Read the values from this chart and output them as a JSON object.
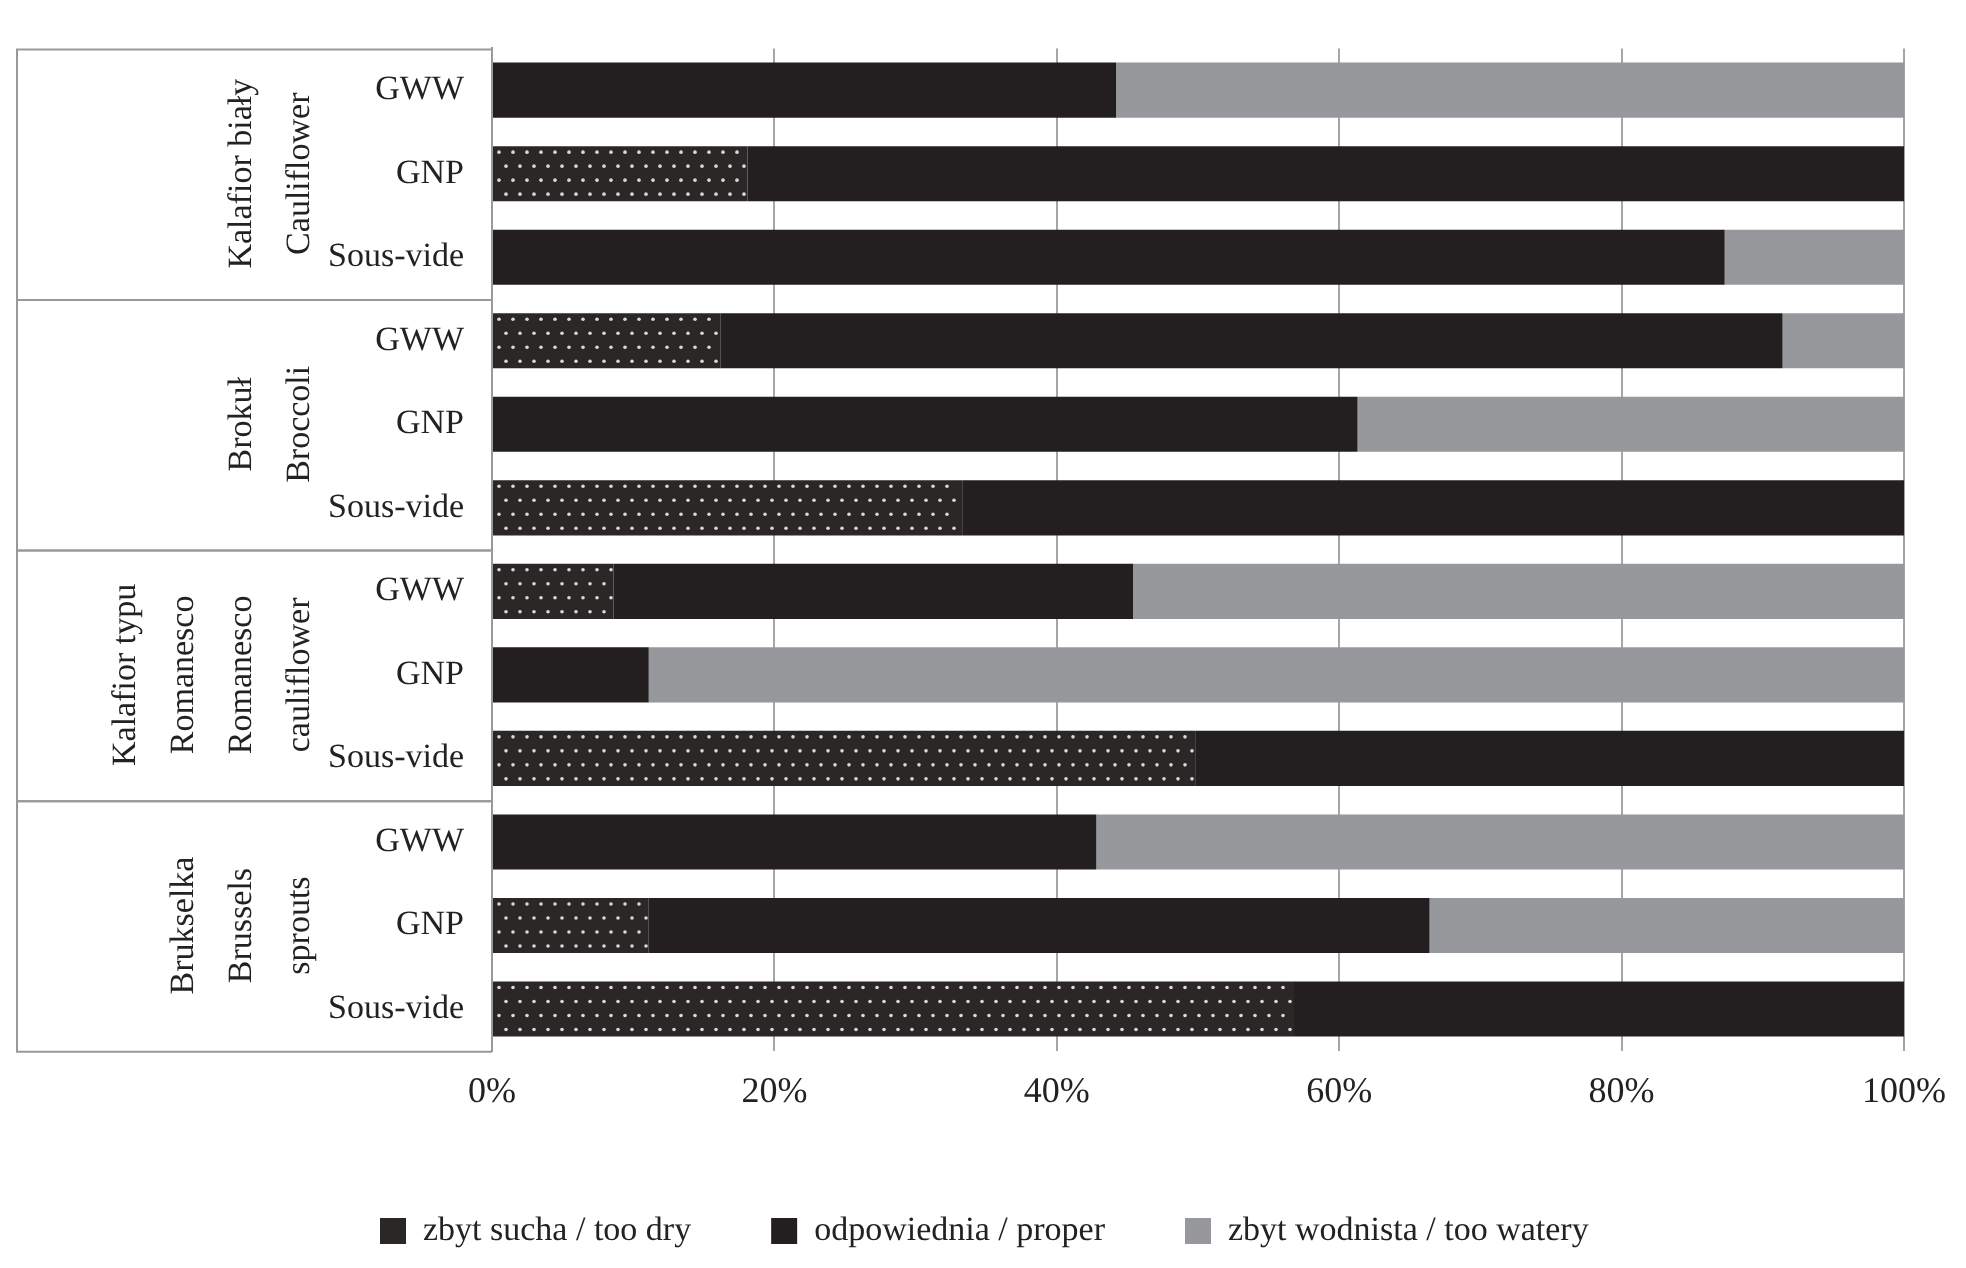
{
  "chart_data": {
    "type": "bar",
    "orientation": "horizontal",
    "stacked": true,
    "categories": [
      "GWW",
      "GNP",
      "Sous-vide",
      "GWW",
      "GNP",
      "Sous-vide",
      "GWW",
      "GNP",
      "Sous-vide",
      "GWW",
      "GNP",
      "Sous-vide"
    ],
    "series": [
      {
        "name": "zbyt sucha / too dry",
        "color": "#2b2727",
        "values": [
          0,
          18.1,
          0,
          16.2,
          0,
          33.3,
          8.6,
          0,
          49.8,
          0,
          11.1,
          56.8
        ]
      },
      {
        "name": "odpowiednia / proper",
        "color": "#231f20",
        "values": [
          44.2,
          81.9,
          87.3,
          75.2,
          61.3,
          66.7,
          36.8,
          11.1,
          50.2,
          42.8,
          55.3,
          43.2
        ]
      },
      {
        "name": "zbyt wodnista / too watery",
        "color": "#97989c",
        "values": [
          55.8,
          0,
          12.7,
          8.6,
          38.7,
          0,
          54.6,
          88.9,
          0,
          57.2,
          33.6,
          0
        ]
      }
    ],
    "xlim": [
      0,
      100
    ],
    "xticks": [
      {
        "value": 0,
        "label": "0%"
      },
      {
        "value": 20,
        "label": "20%"
      },
      {
        "value": 40,
        "label": "40%"
      },
      {
        "value": 60,
        "label": "60%"
      },
      {
        "value": 80,
        "label": "80%"
      },
      {
        "value": 100,
        "label": "100%"
      }
    ],
    "grid": "x",
    "legend": "bottom",
    "annotations": [
      "Kalafior biały\nCauliflower",
      "Brokuł\nBroccoli",
      "Kalafior typu\nRomanesco\nRomanesco\ncauliflower",
      "Brukselka\nBrussels\nsprouts"
    ]
  }
}
